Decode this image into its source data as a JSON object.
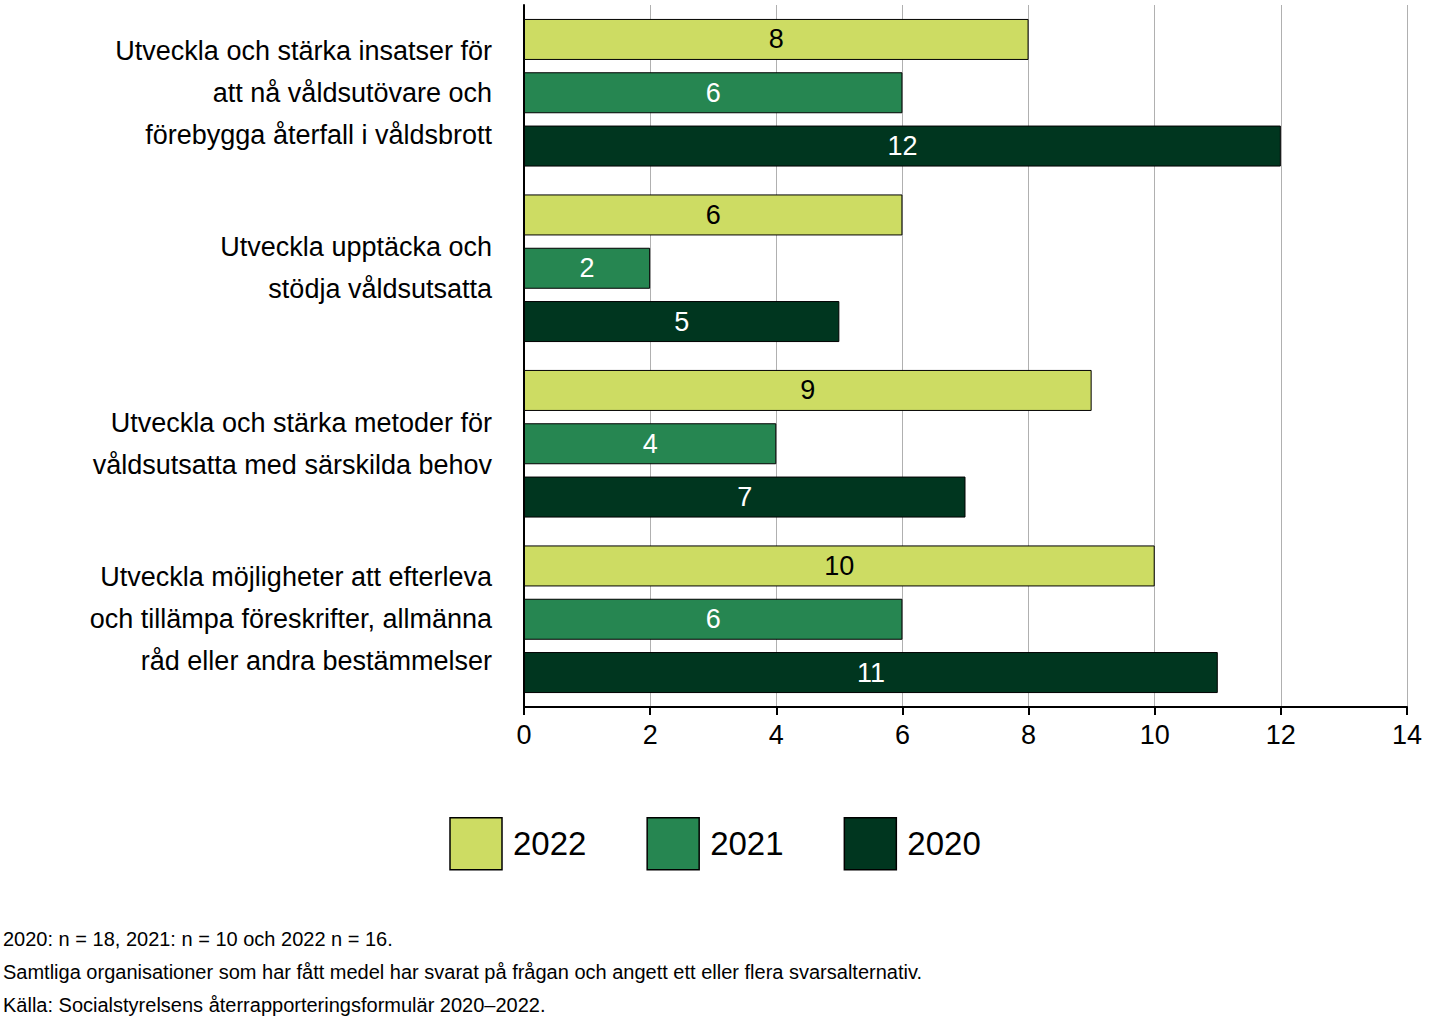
{
  "chart_data": {
    "type": "bar",
    "orientation": "horizontal",
    "categories": [
      "Utveckla och stärka insatser för\natt nå våldsutövare och\nförebygga återfall i våldsbrott",
      "Utveckla upptäcka och\nstödja våldsutsatta",
      "Utveckla och stärka metoder för\nvåldsutsatta med särskilda behov",
      "Utveckla möjligheter att efterleva\noch tillämpa föreskrifter, allmänna\nråd eller andra bestämmelser"
    ],
    "series": [
      {
        "name": "2022",
        "color": "#cddc63",
        "values": [
          8,
          6,
          9,
          10
        ]
      },
      {
        "name": "2021",
        "color": "#268651",
        "values": [
          6,
          2,
          4,
          6
        ]
      },
      {
        "name": "2020",
        "color": "#00361f",
        "values": [
          12,
          5,
          7,
          11
        ]
      }
    ],
    "xlim": [
      0,
      14
    ],
    "xticks": [
      0,
      2,
      4,
      6,
      8,
      10,
      12,
      14
    ],
    "grid": true,
    "legend": "bottom",
    "data_labels": true,
    "annotations": [
      "2020: n = 18, 2021: n = 10 och 2022 n = 16.",
      "Samtliga organisationer som har fått medel har svarat på frågan och angett ett eller flera svarsalternativ.",
      "Källa: Socialstyrelsens återrapporteringsformulär 2020–2022."
    ]
  }
}
